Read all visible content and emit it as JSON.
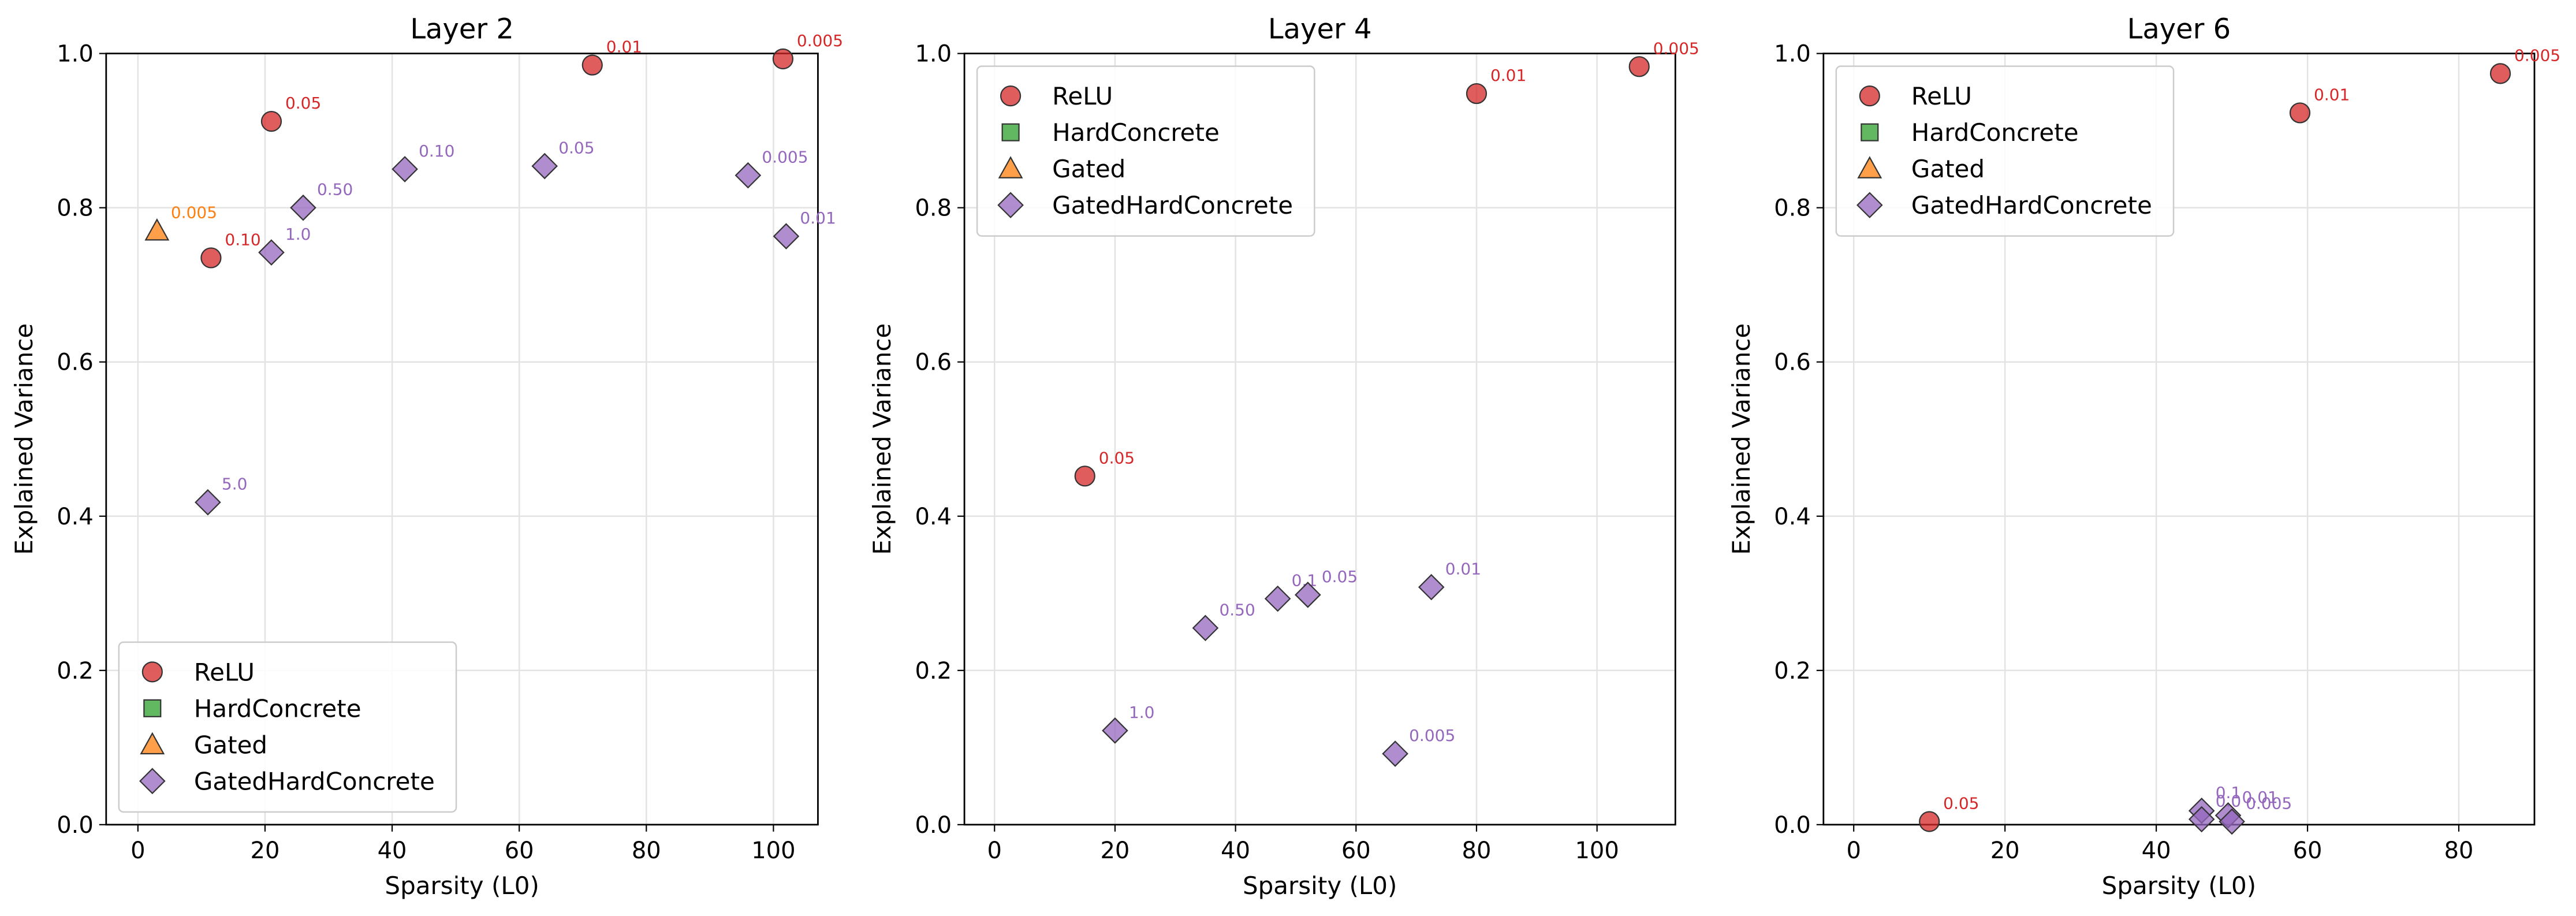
{
  "chart_data": [
    {
      "type": "scatter",
      "title": "Layer 2",
      "xlabel": "Sparsity (L0)",
      "ylabel": "Explained Variance",
      "xlim": [
        -5,
        107
      ],
      "ylim": [
        0,
        1.0
      ],
      "xticks": [
        "0",
        "20",
        "40",
        "60",
        "80",
        "100"
      ],
      "yticks": [
        "0.0",
        "0.2",
        "0.4",
        "0.6",
        "0.8",
        "1.0"
      ],
      "grid": true,
      "legend": "lower-left",
      "series": [
        {
          "name": "ReLU",
          "marker": "circle",
          "color": "#d62728",
          "points": [
            {
              "x": 11.5,
              "y": 0.735,
              "label": "0.10"
            },
            {
              "x": 21,
              "y": 0.912,
              "label": "0.05"
            },
            {
              "x": 71.5,
              "y": 0.985,
              "label": "0.01"
            },
            {
              "x": 101.5,
              "y": 0.993,
              "label": "0.005"
            }
          ]
        },
        {
          "name": "HardConcrete",
          "marker": "square",
          "color": "#2ca02c",
          "points": []
        },
        {
          "name": "Gated",
          "marker": "triangle",
          "color": "#ff7f0e",
          "points": [
            {
              "x": 3,
              "y": 0.77,
              "label": "0.005"
            }
          ]
        },
        {
          "name": "GatedHardConcrete",
          "marker": "diamond",
          "color": "#9467bd",
          "points": [
            {
              "x": 11,
              "y": 0.418,
              "label": "5.0"
            },
            {
              "x": 21,
              "y": 0.742,
              "label": "1.0"
            },
            {
              "x": 26,
              "y": 0.8,
              "label": "0.50"
            },
            {
              "x": 42,
              "y": 0.85,
              "label": "0.10"
            },
            {
              "x": 64,
              "y": 0.854,
              "label": "0.05"
            },
            {
              "x": 96,
              "y": 0.842,
              "label": "0.005"
            },
            {
              "x": 102,
              "y": 0.763,
              "label": "0.01"
            }
          ]
        }
      ]
    },
    {
      "type": "scatter",
      "title": "Layer 4",
      "xlabel": "Sparsity (L0)",
      "ylabel": "Explained Variance",
      "xlim": [
        -5,
        113
      ],
      "ylim": [
        0,
        1.0
      ],
      "xticks": [
        "0",
        "20",
        "40",
        "60",
        "80",
        "100"
      ],
      "yticks": [
        "0.0",
        "0.2",
        "0.4",
        "0.6",
        "0.8",
        "1.0"
      ],
      "grid": true,
      "legend": "upper-left",
      "series": [
        {
          "name": "ReLU",
          "marker": "circle",
          "color": "#d62728",
          "points": [
            {
              "x": 15,
              "y": 0.452,
              "label": "0.05"
            },
            {
              "x": 80,
              "y": 0.948,
              "label": "0.01"
            },
            {
              "x": 107,
              "y": 0.983,
              "label": "0.005"
            }
          ]
        },
        {
          "name": "HardConcrete",
          "marker": "square",
          "color": "#2ca02c",
          "points": []
        },
        {
          "name": "Gated",
          "marker": "triangle",
          "color": "#ff7f0e",
          "points": []
        },
        {
          "name": "GatedHardConcrete",
          "marker": "diamond",
          "color": "#9467bd",
          "points": [
            {
              "x": 20,
              "y": 0.122,
              "label": "1.0"
            },
            {
              "x": 35,
              "y": 0.255,
              "label": "0.50"
            },
            {
              "x": 47,
              "y": 0.293,
              "label": "0.1"
            },
            {
              "x": 52,
              "y": 0.298,
              "label": "0.05"
            },
            {
              "x": 66.5,
              "y": 0.092,
              "label": "0.005"
            },
            {
              "x": 72.5,
              "y": 0.308,
              "label": "0.01"
            }
          ]
        }
      ]
    },
    {
      "type": "scatter",
      "title": "Layer 6",
      "xlabel": "Sparsity (L0)",
      "ylabel": "Explained Variance",
      "xlim": [
        -4,
        90
      ],
      "ylim": [
        0,
        1.0
      ],
      "xticks": [
        "0",
        "20",
        "40",
        "60",
        "80"
      ],
      "yticks": [
        "0.0",
        "0.2",
        "0.4",
        "0.6",
        "0.8",
        "1.0"
      ],
      "grid": true,
      "legend": "upper-left",
      "series": [
        {
          "name": "ReLU",
          "marker": "circle",
          "color": "#d62728",
          "points": [
            {
              "x": 10,
              "y": 0.004,
              "label": "0.05"
            },
            {
              "x": 59,
              "y": 0.923,
              "label": "0.01"
            },
            {
              "x": 85.5,
              "y": 0.974,
              "label": "0.005"
            }
          ]
        },
        {
          "name": "HardConcrete",
          "marker": "square",
          "color": "#2ca02c",
          "points": []
        },
        {
          "name": "Gated",
          "marker": "triangle",
          "color": "#ff7f0e",
          "points": []
        },
        {
          "name": "GatedHardConcrete",
          "marker": "diamond",
          "color": "#9467bd",
          "points": [
            {
              "x": 46,
              "y": 0.018,
              "label": "0.1"
            },
            {
              "x": 46,
              "y": 0.007,
              "label": "0.0"
            },
            {
              "x": 49.5,
              "y": 0.012,
              "label": "0.01"
            },
            {
              "x": 50,
              "y": 0.004,
              "label": "0.005"
            }
          ]
        }
      ]
    }
  ]
}
